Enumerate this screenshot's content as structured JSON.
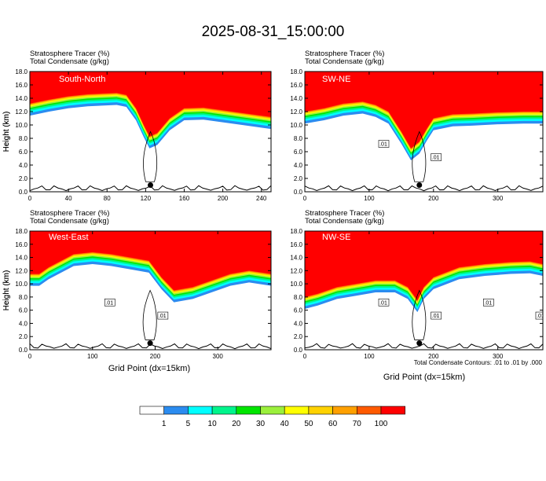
{
  "title": "2025-08-31_15:00:00",
  "panel_header": {
    "line1": "Stratosphere Tracer    (%)",
    "line2": "Total Condensate    (g/kg)"
  },
  "ylabel": "Height (km)",
  "xlabel": "Grid Point (dx=15km)",
  "contour_note": "Total Condensate Contours: .01 to .01 by .000",
  "colorbar": {
    "colors": [
      "#ffffff",
      "#2b8cf0",
      "#00ffff",
      "#00f58c",
      "#00e600",
      "#9bf03c",
      "#ffff00",
      "#ffd200",
      "#ffa000",
      "#ff5a00",
      "#ff0000"
    ],
    "labels": [
      "1",
      "5",
      "10",
      "20",
      "30",
      "40",
      "50",
      "60",
      "70",
      "100"
    ]
  },
  "chart_data": [
    {
      "type": "heatmap",
      "name": "South-North",
      "xlim": [
        0,
        250
      ],
      "ylim": [
        0,
        18
      ],
      "xticks": [
        0,
        40,
        80,
        120,
        160,
        200,
        240
      ],
      "yticks": [
        "0.0",
        "2.0",
        "4.0",
        "6.0",
        "8.0",
        "10.0",
        "12.0",
        "14.0",
        "16.0",
        "18.0"
      ],
      "contour_labels": [],
      "max_wind_marker": {
        "x": 125,
        "y": 1.0
      },
      "tracer_front": {
        "x": [
          0,
          20,
          40,
          60,
          75,
          90,
          100,
          110,
          118,
          124,
          132,
          145,
          160,
          180,
          200,
          220,
          250
        ],
        "y": [
          13.2,
          13.8,
          14.3,
          14.6,
          14.7,
          14.8,
          14.5,
          12.5,
          10.0,
          8.3,
          8.8,
          11.0,
          12.5,
          12.6,
          12.2,
          11.8,
          11.2
        ]
      }
    },
    {
      "type": "heatmap",
      "name": "SW-NE",
      "xlim": [
        0,
        370
      ],
      "ylim": [
        0,
        18
      ],
      "xticks": [
        0,
        100,
        200,
        300
      ],
      "yticks": [
        "0.0",
        "2.0",
        "4.0",
        "6.0",
        "8.0",
        "10.0",
        "12.0",
        "14.0",
        "16.0",
        "18.0"
      ],
      "contour_labels": [
        ".01",
        ".01"
      ],
      "max_wind_marker": {
        "x": 178,
        "y": 1.0
      },
      "tracer_front": {
        "x": [
          0,
          30,
          60,
          90,
          110,
          130,
          150,
          165,
          178,
          190,
          200,
          230,
          260,
          300,
          340,
          370
        ],
        "y": [
          12.0,
          12.5,
          13.2,
          13.5,
          13.0,
          12.0,
          9.0,
          6.5,
          7.5,
          9.5,
          11.0,
          11.6,
          11.7,
          11.9,
          12.0,
          12.0
        ]
      }
    },
    {
      "type": "heatmap",
      "name": "West-East",
      "xlim": [
        0,
        385
      ],
      "ylim": [
        0,
        18
      ],
      "xticks": [
        0,
        100,
        200,
        300
      ],
      "yticks": [
        "0.0",
        "2.0",
        "4.0",
        "6.0",
        "8.0",
        "10.0",
        "12.0",
        "14.0",
        "16.0",
        "18.0"
      ],
      "contour_labels": [
        ".01",
        ".01"
      ],
      "max_wind_marker": {
        "x": 192,
        "y": 1.0
      },
      "tracer_front": {
        "x": [
          0,
          15,
          30,
          50,
          70,
          100,
          130,
          160,
          190,
          210,
          230,
          260,
          290,
          320,
          350,
          385
        ],
        "y": [
          11.5,
          11.5,
          12.5,
          13.5,
          14.5,
          14.8,
          14.5,
          14.0,
          13.5,
          11.0,
          9.0,
          9.5,
          10.5,
          11.5,
          12.0,
          11.5
        ]
      }
    },
    {
      "type": "heatmap",
      "name": "NW-SE",
      "xlim": [
        0,
        370
      ],
      "ylim": [
        0,
        18
      ],
      "xticks": [
        0,
        100,
        200,
        300
      ],
      "yticks": [
        "0.0",
        "2.0",
        "4.0",
        "6.0",
        "8.0",
        "10.0",
        "12.0",
        "14.0",
        "16.0",
        "18.0"
      ],
      "contour_labels": [
        ".01",
        ".01",
        ".01",
        ".01"
      ],
      "max_wind_marker": {
        "x": 178,
        "y": 1.0
      },
      "tracer_front": {
        "x": [
          0,
          20,
          50,
          80,
          110,
          140,
          160,
          175,
          185,
          200,
          240,
          280,
          320,
          350,
          370
        ],
        "y": [
          8.0,
          8.5,
          9.5,
          10.0,
          10.5,
          10.5,
          9.5,
          7.5,
          9.5,
          11.0,
          12.5,
          13.0,
          13.3,
          13.4,
          13.0
        ]
      }
    }
  ]
}
